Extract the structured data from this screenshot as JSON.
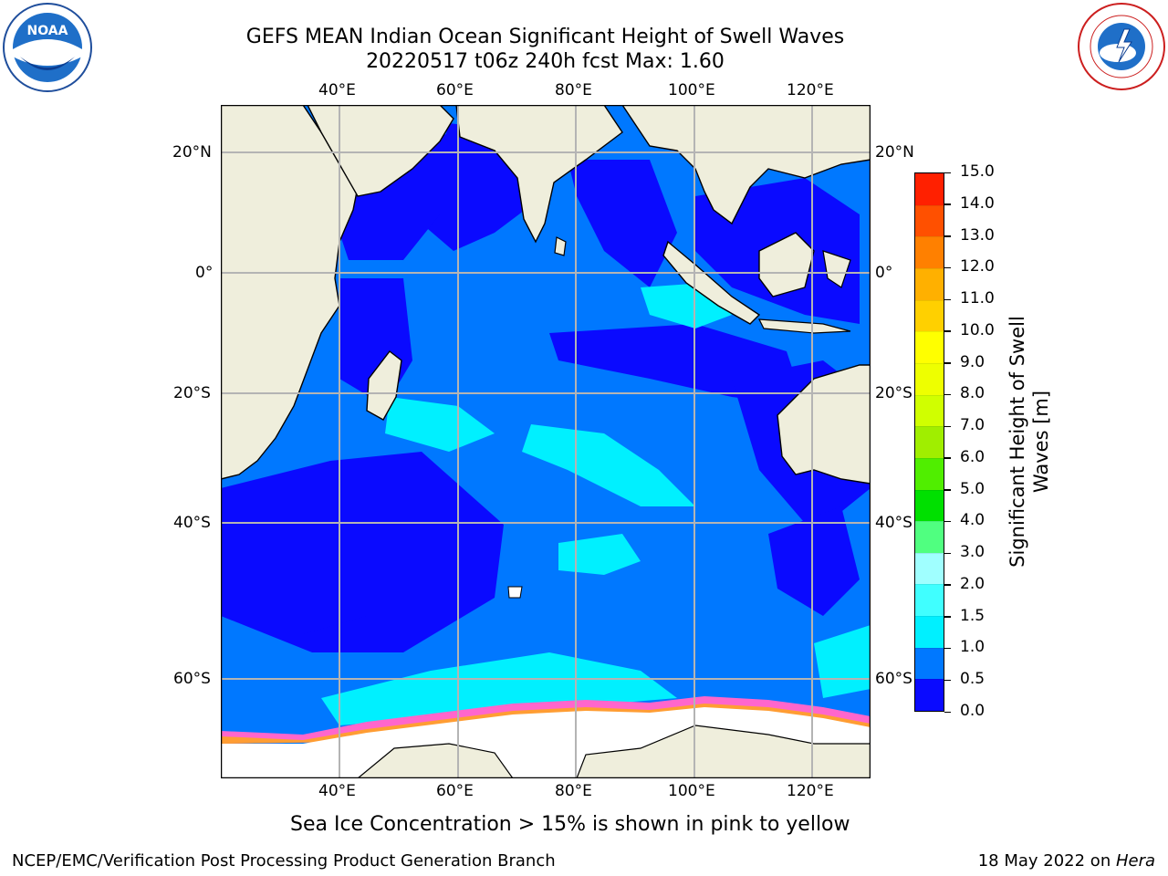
{
  "title_line1": "GEFS MEAN Indian Ocean Significant Height of Swell Waves",
  "title_line2": "20220517 t06z 240h fcst   Max: 1.60",
  "lon_ticks": [
    "40°E",
    "60°E",
    "80°E",
    "100°E",
    "120°E"
  ],
  "lat_ticks": [
    "20°N",
    "0°",
    "20°S",
    "40°S",
    "60°S"
  ],
  "colorbar": {
    "label": "Significant Height of Swell Waves [m]",
    "ticks": [
      "0.0",
      "0.5",
      "1.0",
      "1.5",
      "2.0",
      "3.0",
      "4.0",
      "5.0",
      "6.0",
      "7.0",
      "8.0",
      "9.0",
      "10.0",
      "11.0",
      "12.0",
      "13.0",
      "14.0",
      "15.0"
    ],
    "colors": [
      "#0a0aff",
      "#0078ff",
      "#00f0ff",
      "#40ffff",
      "#a0ffff",
      "#50ff80",
      "#00e000",
      "#50ee00",
      "#a0ee00",
      "#d0ff00",
      "#eeff00",
      "#ffff00",
      "#ffd000",
      "#ffb000",
      "#ff8000",
      "#ff5000",
      "#ff2000"
    ]
  },
  "ice_note": "Sea Ice Concentration > 15% is shown in pink to yellow",
  "footer_left": "NCEP/EMC/Verification Post Processing Product Generation Branch",
  "footer_right_date": "18 May 2022 on ",
  "footer_right_host": "Hera",
  "logos": {
    "left": "noaa-logo",
    "right": "nws-logo"
  }
}
